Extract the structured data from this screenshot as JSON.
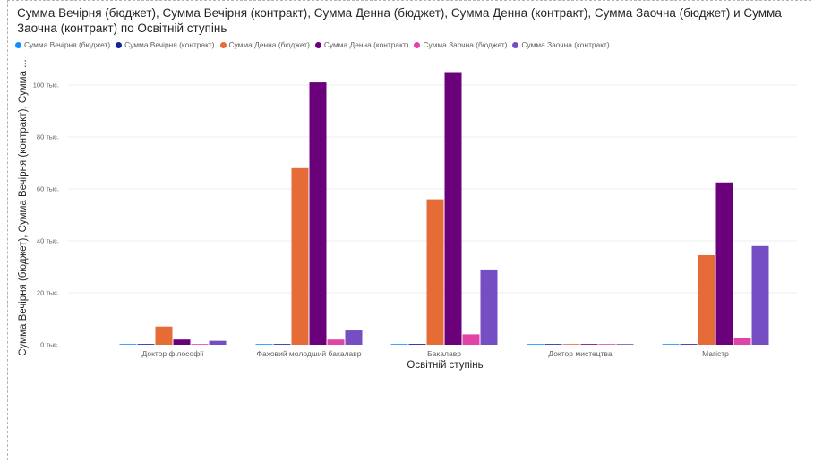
{
  "title": "Сумма Вечірня (бюджет), Сумма Вечірня (контракт), Сумма Денна (бюджет), Сумма Денна (контракт), Сумма Заочна (бюджет) и Сумма Заочна (контракт) по Освітній ступінь",
  "chart_data": {
    "type": "bar",
    "title": "Сумма Вечірня (бюджет), Сумма Вечірня (контракт), Сумма Денна (бюджет), Сумма Денна (контракт), Сумма Заочна (бюджет) и Сумма Заочна (контракт) по Освітній ступінь",
    "xlabel": "Освітній ступінь",
    "ylabel": "Сумма Вечірня (бюджет), Сумма Вечірня (контракт), Сумма ...",
    "ylim": [
      0,
      105000
    ],
    "yticks": [
      0,
      20000,
      40000,
      60000,
      80000,
      100000
    ],
    "ytick_labels": [
      "0 тыс.",
      "20 тыс.",
      "40 тыс.",
      "60 тыс.",
      "80 тыс.",
      "100 тыс."
    ],
    "grid": true,
    "legend_position": "top-left",
    "categories": [
      "Доктор філософії",
      "Фаховий молодший бакалавр",
      "Бакалавр",
      "Доктор мистецтва",
      "Магістр"
    ],
    "series": [
      {
        "name": "Сумма Вечірня (бюджет)",
        "color": "#118DFF",
        "values": [
          0,
          0,
          0,
          0,
          0
        ]
      },
      {
        "name": "Сумма Вечірня (контракт)",
        "color": "#12239E",
        "values": [
          200,
          100,
          300,
          0,
          200
        ]
      },
      {
        "name": "Сумма Денна (бюджет)",
        "color": "#E66C37",
        "values": [
          7000,
          68000,
          56000,
          200,
          34500
        ]
      },
      {
        "name": "Сумма Денна (контракт)",
        "color": "#6B007B",
        "values": [
          2000,
          101000,
          105000,
          200,
          62500
        ]
      },
      {
        "name": "Сумма Заочна (бюджет)",
        "color": "#E044A7",
        "values": [
          0,
          2000,
          4000,
          0,
          2500
        ]
      },
      {
        "name": "Сумма Заочна (контракт)",
        "color": "#744EC2",
        "values": [
          1500,
          5500,
          29000,
          200,
          38000
        ]
      }
    ]
  }
}
